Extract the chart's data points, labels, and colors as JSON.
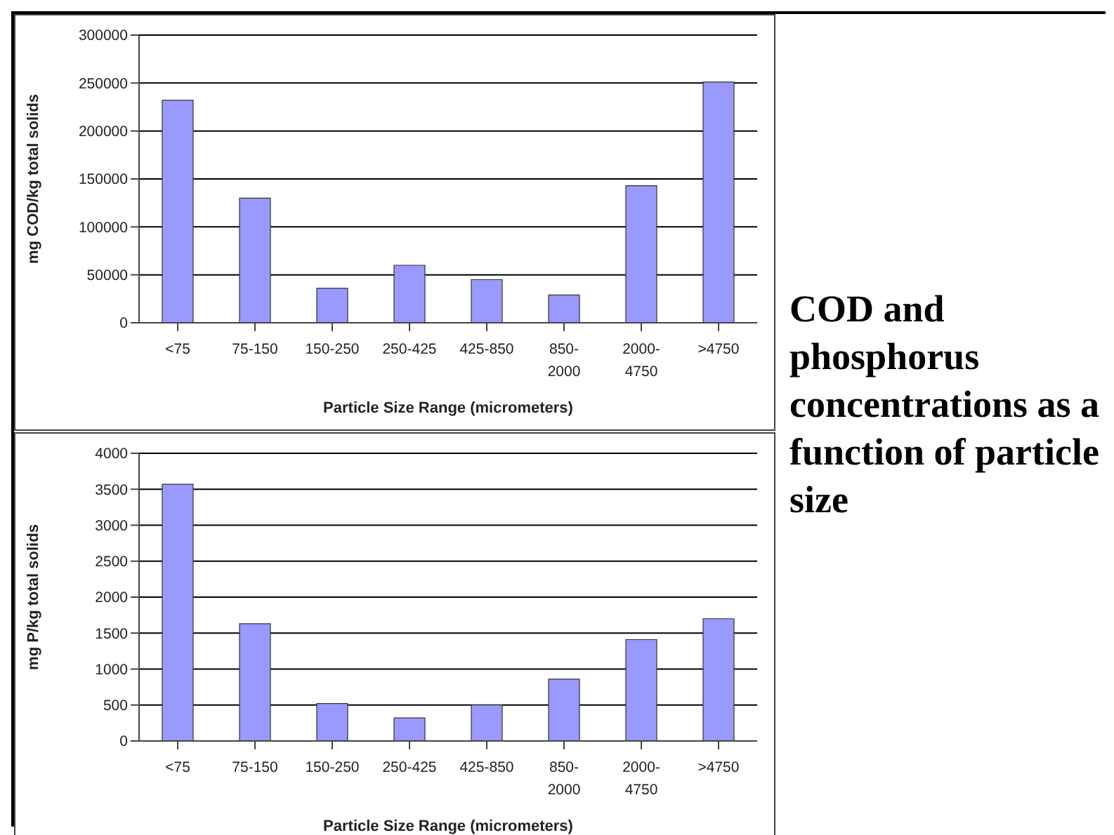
{
  "chart_data": [
    {
      "type": "bar",
      "categories": [
        "<75",
        "75-150",
        "150-250",
        "250-425",
        "425-850",
        "850-2000",
        "2000-4750",
        ">4750"
      ],
      "values": [
        232000,
        130000,
        36000,
        60000,
        45000,
        29000,
        143000,
        251000
      ],
      "color": "#9999ff",
      "ylim": [
        0,
        300000
      ],
      "yticks": [
        0,
        50000,
        100000,
        150000,
        200000,
        250000,
        300000
      ],
      "grid": "y",
      "xlabel": "Particle Size Range (micrometers)",
      "ylabel": "mg COD/kg total solids"
    },
    {
      "type": "bar",
      "categories": [
        "<75",
        "75-150",
        "150-250",
        "250-425",
        "425-850",
        "850-2000",
        "2000-4750",
        ">4750"
      ],
      "values": [
        3570,
        1630,
        520,
        320,
        500,
        860,
        1410,
        1700
      ],
      "color": "#9999ff",
      "ylim": [
        0,
        4000
      ],
      "yticks": [
        0,
        500,
        1000,
        1500,
        2000,
        2500,
        3000,
        3500,
        4000
      ],
      "grid": "y",
      "xlabel": "Particle Size Range (micrometers)",
      "ylabel": "mg P/kg total solids"
    },
    {
      "type": "other",
      "title": "COD and phosphorus concentrations as a function of particle size"
    }
  ]
}
